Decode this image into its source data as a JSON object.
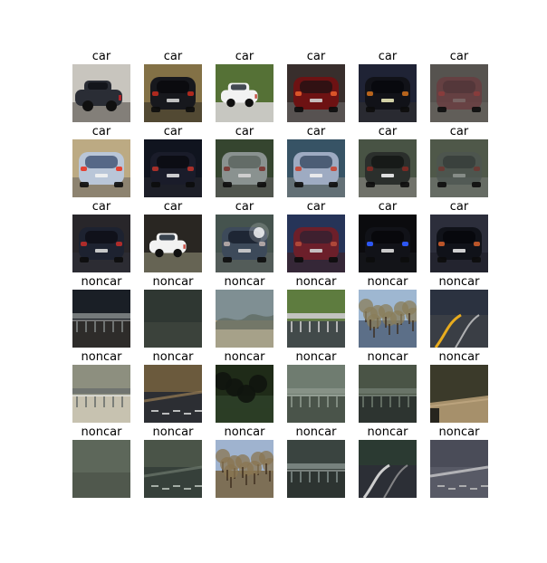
{
  "figure": {
    "cells": [
      {
        "title": "car",
        "scene": "car",
        "bg": "#dad6cf",
        "ground": "#8f8a84",
        "body": "#2a2d35",
        "window": "#111318",
        "lights": "#c0262a",
        "plate": "#d9d9d9",
        "style": "side"
      },
      {
        "title": "car",
        "scene": "car",
        "bg": "#8f7b4c",
        "ground": "#5a5038",
        "body": "#17181d",
        "window": "#0a0a0e",
        "lights": "#b62a1f",
        "plate": "#d3d3d3",
        "style": "rear"
      },
      {
        "title": "car",
        "scene": "car",
        "bg": "#5d7b3b",
        "ground": "#d8d8d2",
        "body": "#f2f2f2",
        "window": "#303640",
        "lights": "#c0392b",
        "plate": "#ffffff",
        "style": "side-small"
      },
      {
        "title": "car",
        "scene": "car",
        "bg": "#3d3230",
        "ground": "#5f5a58",
        "body": "#6d1213",
        "window": "#2a1214",
        "lights": "#e05a2a",
        "plate": "#cfcfcf",
        "style": "rear"
      },
      {
        "title": "car",
        "scene": "car",
        "bg": "#22273a",
        "ground": "#2d2e36",
        "body": "#111218",
        "window": "#08090d",
        "lights": "#c1691c",
        "plate": "#e7e5b6",
        "style": "rear"
      },
      {
        "title": "car",
        "scene": "car",
        "bg": "#5e5b56",
        "ground": "#6a6661",
        "body": "#6b3a3e",
        "window": "#4a3236",
        "lights": "#8a3c3c",
        "plate": "#8a8582",
        "style": "rear-blur"
      },
      {
        "title": "car",
        "scene": "car",
        "bg": "#cdb98f",
        "ground": "#9a8f7a",
        "body": "#b9c6d8",
        "window": "#4b5d7e",
        "lights": "#e63b2b",
        "plate": "#f2f2f2",
        "style": "rear"
      },
      {
        "title": "car",
        "scene": "car",
        "bg": "#121622",
        "ground": "#20222c",
        "body": "#1a1c2a",
        "window": "#0b0c12",
        "lights": "#b0312a",
        "plate": "#e0e0e0",
        "style": "rear"
      },
      {
        "title": "car",
        "scene": "car",
        "bg": "#3a4b34",
        "ground": "#575d55",
        "body": "#8a9290",
        "window": "#5e6863",
        "lights": "#7a3a36",
        "plate": "#d5d5d5",
        "style": "rear"
      },
      {
        "title": "car",
        "scene": "car",
        "bg": "#3c5b6e",
        "ground": "#6c7a80",
        "body": "#9eabc2",
        "window": "#42546d",
        "lights": "#c44a3a",
        "plate": "#f0f0f0",
        "style": "rear"
      },
      {
        "title": "car",
        "scene": "car",
        "bg": "#4f5b4a",
        "ground": "#7a7c74",
        "body": "#2b2f2c",
        "window": "#151816",
        "lights": "#7d2a24",
        "plate": "#f3f3f3",
        "style": "rear"
      },
      {
        "title": "car",
        "scene": "car",
        "bg": "#566050",
        "ground": "#6f766d",
        "body": "#4c5450",
        "window": "#2e3432",
        "lights": "#6a3a34",
        "plate": "#bfc3bf",
        "style": "rear-blur"
      },
      {
        "title": "car",
        "scene": "car",
        "bg": "#2c2a2e",
        "ground": "#303038",
        "body": "#1d2230",
        "window": "#0f1018",
        "lights": "#b62d2a",
        "plate": "#dadada",
        "style": "rear"
      },
      {
        "title": "car",
        "scene": "car",
        "bg": "#2d2a25",
        "ground": "#6f6d5c",
        "body": "#f2f2f2",
        "window": "#25303c",
        "lights": "#c7372c",
        "plate": "#ffffff",
        "style": "side-small"
      },
      {
        "title": "car",
        "scene": "car",
        "bg": "#4b5b55",
        "ground": "#5b6461",
        "body": "#3d4a5a",
        "window": "#1b2230",
        "lights": "#b3a8a8",
        "plate": "#d0d0d0",
        "style": "rear-flare"
      },
      {
        "title": "car",
        "scene": "car",
        "bg": "#2a3960",
        "ground": "#3a2b3c",
        "body": "#6c1f2a",
        "window": "#3a2030",
        "lights": "#b24a3a",
        "plate": "#d0d0d0",
        "style": "rear"
      },
      {
        "title": "car",
        "scene": "car",
        "bg": "#0c0c10",
        "ground": "#15161b",
        "body": "#111218",
        "window": "#08080b",
        "lights": "#2f5cff",
        "plate": "#dedede",
        "style": "rear"
      },
      {
        "title": "car",
        "scene": "car",
        "bg": "#303241",
        "ground": "#272833",
        "body": "#101219",
        "window": "#07080c",
        "lights": "#c45a2a",
        "plate": "#e6e6e6",
        "style": "rear"
      },
      {
        "title": "noncar",
        "scene": "noncar",
        "bg": "#1a1f26",
        "ground": "#2e2c2a",
        "accent": "#7a807f",
        "stripe": "#a3a3a3",
        "style": "guardrail"
      },
      {
        "title": "noncar",
        "scene": "noncar",
        "bg": "#2c332f",
        "ground": "#3a403a",
        "accent": "#444b45",
        "stripe": "#5c635c",
        "style": "plain"
      },
      {
        "title": "noncar",
        "scene": "noncar",
        "bg": "#7f8f93",
        "ground": "#b3a07f",
        "accent": "#5e6a60",
        "stripe": "#d0c5a4",
        "style": "hills"
      },
      {
        "title": "noncar",
        "scene": "noncar",
        "bg": "#5e7c3f",
        "ground": "#424a4a",
        "accent": "#c7c7c7",
        "stripe": "#6f8b4f",
        "style": "guardrail"
      },
      {
        "title": "noncar",
        "scene": "noncar",
        "bg": "#9eb7d1",
        "ground": "#5c6f88",
        "accent": "#8a7e5a",
        "stripe": "#b8c7d9",
        "style": "tree"
      },
      {
        "title": "noncar",
        "scene": "noncar",
        "bg": "#2b3240",
        "ground": "#3a3e45",
        "accent": "#f2b21c",
        "stripe": "#d7d7d7",
        "style": "road-curve"
      },
      {
        "title": "noncar",
        "scene": "noncar",
        "bg": "#8d8f7f",
        "ground": "#c7c2b0",
        "accent": "#6f7370",
        "stripe": "#f0f0f0",
        "style": "guardrail"
      },
      {
        "title": "noncar",
        "scene": "noncar",
        "bg": "#6b5a3d",
        "ground": "#2c2e33",
        "accent": "#9a7f55",
        "stripe": "#e0e0e0",
        "style": "road-lines"
      },
      {
        "title": "noncar",
        "scene": "noncar",
        "bg": "#1f2b18",
        "ground": "#2b3d26",
        "accent": "#0f140e",
        "stripe": "#2f4a26",
        "style": "trees"
      },
      {
        "title": "noncar",
        "scene": "noncar",
        "bg": "#6f7c70",
        "ground": "#4a544a",
        "accent": "#889488",
        "stripe": "#b6bfb6",
        "style": "guardrail"
      },
      {
        "title": "noncar",
        "scene": "noncar",
        "bg": "#4a5446",
        "ground": "#2d3430",
        "accent": "#6a766a",
        "stripe": "#8e9b8e",
        "style": "guardrail"
      },
      {
        "title": "noncar",
        "scene": "noncar",
        "bg": "#3b3a2a",
        "ground": "#b39a72",
        "accent": "#1a1a16",
        "stripe": "#c9b08a",
        "style": "road-edge"
      },
      {
        "title": "noncar",
        "scene": "noncar",
        "bg": "#5a6356",
        "ground": "#4b5248",
        "accent": "#7c857a",
        "stripe": "#8f978c",
        "style": "plain"
      },
      {
        "title": "noncar",
        "scene": "noncar",
        "bg": "#4a5448",
        "ground": "#36403a",
        "accent": "#6e7a6e",
        "stripe": "#bfc7bf",
        "style": "road-lines"
      },
      {
        "title": "noncar",
        "scene": "noncar",
        "bg": "#9fb3cf",
        "ground": "#7d6f56",
        "accent": "#8a7652",
        "stripe": "#c5d3e6",
        "style": "tree"
      },
      {
        "title": "noncar",
        "scene": "noncar",
        "bg": "#3a4440",
        "ground": "#2d3431",
        "accent": "#7a8682",
        "stripe": "#a3aca9",
        "style": "guardrail"
      },
      {
        "title": "noncar",
        "scene": "noncar",
        "bg": "#2b3a32",
        "ground": "#2c2f36",
        "accent": "#d7d7d7",
        "stripe": "#a0a0a0",
        "style": "road-curve"
      },
      {
        "title": "noncar",
        "scene": "noncar",
        "bg": "#4a4c58",
        "ground": "#585a66",
        "accent": "#d8d8d8",
        "stripe": "#c0c0c0",
        "style": "road-lines"
      }
    ]
  }
}
